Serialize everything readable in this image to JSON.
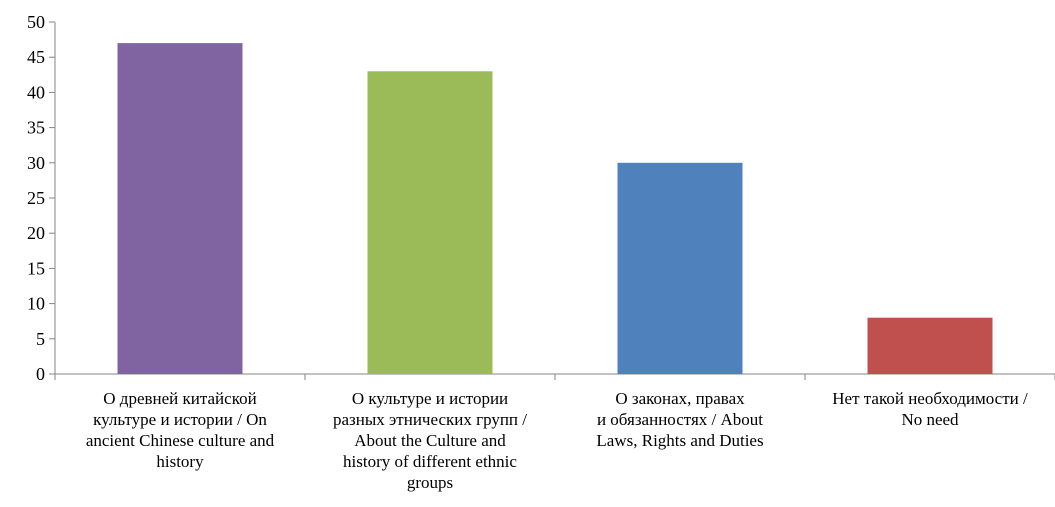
{
  "chart_data": {
    "type": "bar",
    "categories": [
      "О древней китайской культуре и истории / On ancient Chinese culture and history",
      "О культуре и истории разных этнических групп / About the Culture and history of different ethnic groups",
      "О законах, правах и обязанностях / About Laws, Rights and Duties",
      "Нет такой необходимости / No need"
    ],
    "category_lines": [
      [
        "О древней китайской",
        "культуре и истории / On",
        "ancient Chinese culture and",
        "history"
      ],
      [
        "О культуре и истории",
        "разных этнических групп /",
        "About the Culture and",
        "history of different ethnic",
        "groups"
      ],
      [
        "О законах, правах",
        "и обязанностях / About",
        "Laws, Rights and Duties"
      ],
      [
        "Нет такой необходимости /",
        "No need"
      ]
    ],
    "values": [
      47,
      43,
      30,
      8
    ],
    "colors": [
      "#8064a2",
      "#9bbb59",
      "#4f81bd",
      "#c0504d"
    ],
    "ylim": [
      0,
      50
    ],
    "yticks": [
      0,
      5,
      10,
      15,
      20,
      25,
      30,
      35,
      40,
      45,
      50
    ],
    "grid": false,
    "title": "",
    "xlabel": "",
    "ylabel": ""
  }
}
